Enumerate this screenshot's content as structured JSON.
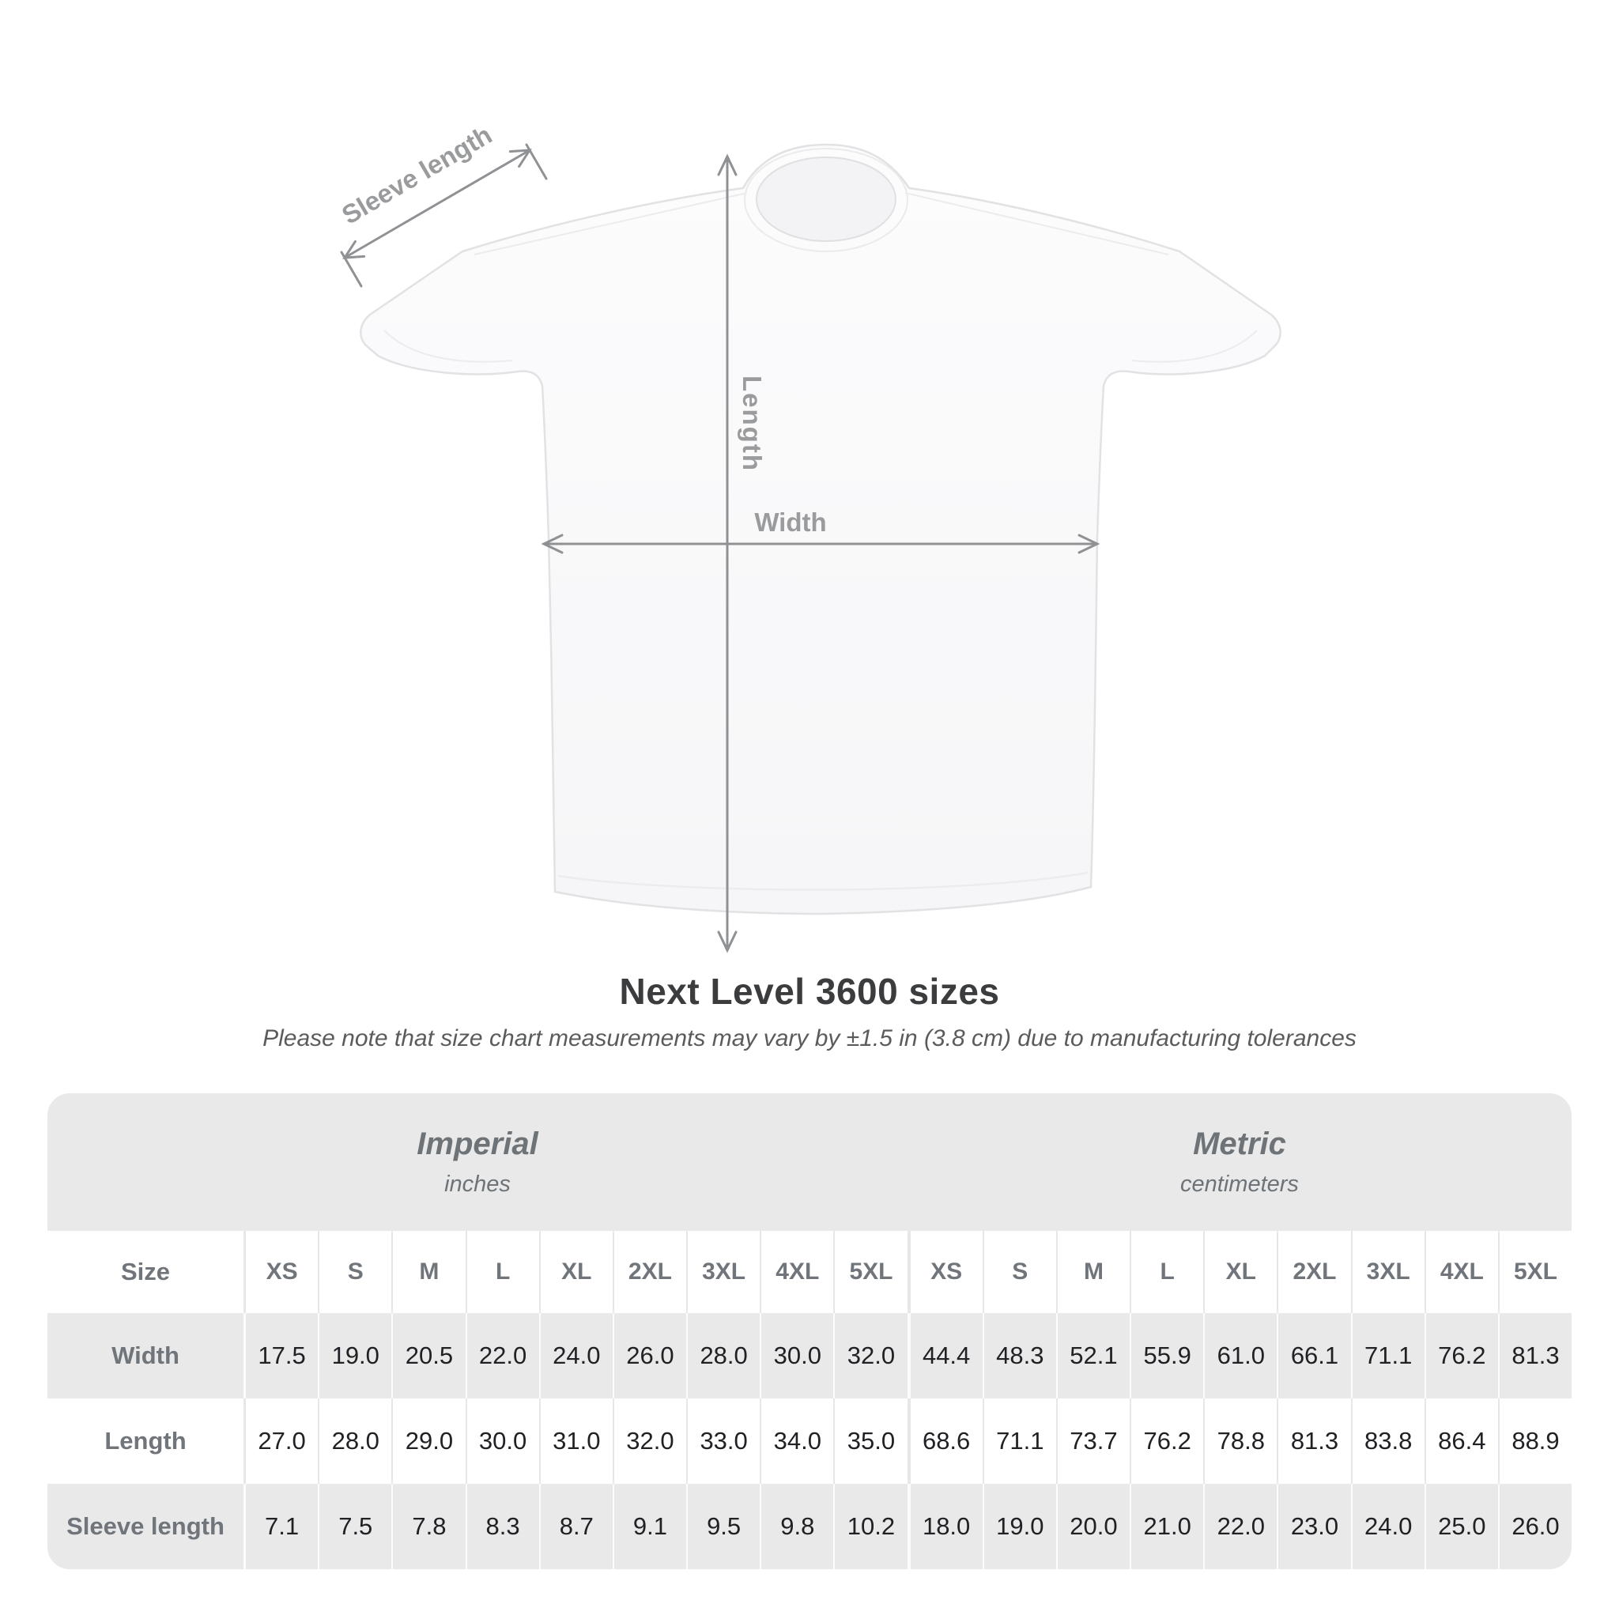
{
  "diagram": {
    "labels": {
      "sleeve_length": "Sleeve length",
      "length": "Length",
      "width": "Width"
    },
    "colors": {
      "annotation_line": "#8f9194",
      "annotation_text": "#9a9b9d",
      "shirt_fill": "#fafafb",
      "shirt_outline": "#e2e2e5"
    }
  },
  "title": "Next Level 3600 sizes",
  "subtitle": "Please note that size chart measurements may vary by ±1.5 in (3.8 cm) due to manufacturing tolerances",
  "table": {
    "size_label": "Size",
    "groups": [
      {
        "name": "Imperial",
        "unit": "inches"
      },
      {
        "name": "Metric",
        "unit": "centimeters"
      }
    ],
    "sizes": [
      "XS",
      "S",
      "M",
      "L",
      "XL",
      "2XL",
      "3XL",
      "4XL",
      "5XL"
    ],
    "rows": [
      {
        "label": "Width",
        "imperial": [
          "17.5",
          "19.0",
          "20.5",
          "22.0",
          "24.0",
          "26.0",
          "28.0",
          "30.0",
          "32.0"
        ],
        "metric": [
          "44.4",
          "48.3",
          "52.1",
          "55.9",
          "61.0",
          "66.1",
          "71.1",
          "76.2",
          "81.3"
        ]
      },
      {
        "label": "Length",
        "imperial": [
          "27.0",
          "28.0",
          "29.0",
          "30.0",
          "31.0",
          "32.0",
          "33.0",
          "34.0",
          "35.0"
        ],
        "metric": [
          "68.6",
          "71.1",
          "73.7",
          "76.2",
          "78.8",
          "81.3",
          "83.8",
          "86.4",
          "88.9"
        ]
      },
      {
        "label": "Sleeve length",
        "imperial": [
          "7.1",
          "7.5",
          "7.8",
          "8.3",
          "8.7",
          "9.1",
          "9.5",
          "9.8",
          "10.2"
        ],
        "metric": [
          "18.0",
          "19.0",
          "20.0",
          "21.0",
          "22.0",
          "23.0",
          "24.0",
          "25.0",
          "26.0"
        ]
      }
    ],
    "colors": {
      "band_background": "#e9e9ea",
      "alt_row_background": "#e9e9ea",
      "header_text": "#6f757a",
      "value_text": "#202124"
    }
  }
}
